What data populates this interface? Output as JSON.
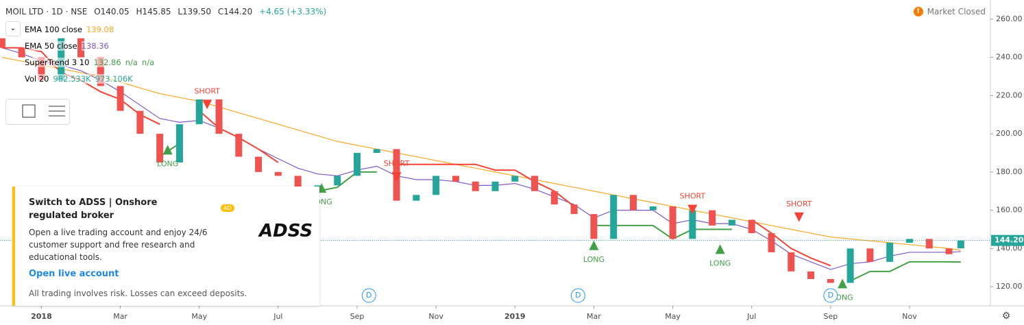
{
  "header": {
    "symbol": "MOIL LTD · 1D · NSE",
    "ohlc": [
      "O140.05",
      "H145.85",
      "L139.50",
      "C144.20"
    ],
    "change": "+4.65 (+3.33%)",
    "status": "Market Closed"
  },
  "legend": [
    {
      "name": "EMA 100 close",
      "values": [
        "139.08"
      ],
      "color": "#f9a825"
    },
    {
      "name": "EMA 50 close",
      "values": [
        "138.36"
      ],
      "color": "#7e57c2"
    },
    {
      "name": "SuperTrend 3 10",
      "values": [
        "132.86",
        "n/a",
        "n/a"
      ],
      "color": "#43a047"
    },
    {
      "name": "Vol 20",
      "values": [
        "982.533K",
        "973.106K"
      ],
      "color": "#26a69a"
    }
  ],
  "ad": {
    "title": "Switch to ADSS | Onshore regulated broker",
    "badge": "AD",
    "logo": "ADSS",
    "body": "Open a live trading account and enjoy 24/6 customer support and free research and educational tools.",
    "link": "Open live account",
    "disclaimer": "All trading involves risk. Losses can exceed deposits."
  },
  "chart_data": {
    "type": "candlestick",
    "x": [
      -1,
      -0.5,
      0,
      0.5,
      1,
      1.5,
      2,
      2.5,
      3,
      3.5,
      4,
      4.5,
      5,
      5.5,
      6,
      6.5,
      7,
      7.5,
      8,
      8.5,
      9,
      9.5,
      10,
      10.5,
      11,
      11.5,
      12,
      12.5,
      13,
      13.5,
      14,
      14.5,
      15,
      15.5,
      16,
      16.5,
      17,
      17.5,
      18,
      18.5,
      19,
      19.5,
      20,
      20.5,
      21,
      21.5,
      22,
      22.5,
      23,
      23.3
    ],
    "open": [
      250,
      245,
      240,
      228,
      250,
      240,
      225,
      212,
      200,
      185,
      205,
      218,
      200,
      188,
      180,
      178,
      172,
      173,
      178,
      190,
      192,
      165,
      168,
      178,
      175,
      170,
      175,
      178,
      170,
      163,
      158,
      145,
      168,
      160,
      162,
      145,
      160,
      152,
      155,
      148,
      138,
      128,
      124,
      122,
      140,
      133,
      143,
      145,
      140,
      140.05
    ],
    "close": [
      245,
      240,
      228,
      250,
      240,
      225,
      212,
      200,
      185,
      205,
      218,
      200,
      188,
      180,
      178,
      172,
      173,
      178,
      190,
      192,
      165,
      168,
      178,
      175,
      170,
      175,
      178,
      170,
      163,
      158,
      145,
      168,
      160,
      162,
      145,
      160,
      152,
      155,
      148,
      138,
      128,
      124,
      122,
      140,
      133,
      143,
      145,
      140,
      137,
      144.2
    ],
    "up_color": "#26a69a",
    "down_color": "#ef5350",
    "lines": [
      {
        "color": "#f9a825",
        "values": [
          240,
          238,
          236,
          234,
          232,
          230,
          227,
          224,
          221,
          219,
          217,
          214,
          211,
          208,
          205,
          202,
          199,
          196,
          194,
          192,
          190,
          188,
          186,
          184,
          182,
          180,
          178,
          176,
          174,
          172,
          170,
          168,
          166,
          164,
          162,
          160,
          158,
          156,
          154,
          152,
          150,
          148,
          146,
          145,
          144,
          143,
          142,
          141,
          140,
          139.08
        ]
      },
      {
        "color": "#7e57c2",
        "values": [
          245,
          242,
          238,
          236,
          233,
          228,
          222,
          215,
          208,
          206,
          207,
          203,
          198,
          192,
          187,
          182,
          179,
          178,
          181,
          183,
          178,
          176,
          176,
          175,
          173,
          173,
          174,
          171,
          167,
          163,
          156,
          160,
          160,
          160,
          153,
          155,
          153,
          153,
          150,
          144,
          137,
          133,
          129,
          132,
          133,
          136,
          138,
          138,
          138,
          138.36
        ]
      },
      {
        "color": "#f44336",
        "values": [
          245,
          245,
          243,
          232,
          228,
          222,
          218,
          210,
          205,
          null,
          212,
          203,
          198,
          192,
          185,
          null,
          null,
          null,
          null,
          null,
          184,
          184,
          184,
          184,
          184,
          181,
          181,
          175,
          170,
          162,
          null,
          null,
          null,
          null,
          null,
          null,
          null,
          null,
          155,
          148,
          140,
          135,
          131,
          null,
          null,
          null,
          null,
          null,
          null,
          null
        ]
      },
      {
        "color": "#43a047",
        "values": [
          null,
          null,
          null,
          null,
          null,
          null,
          null,
          null,
          188,
          195,
          null,
          null,
          null,
          null,
          null,
          168,
          170,
          172,
          180,
          180,
          null,
          null,
          null,
          null,
          null,
          null,
          null,
          null,
          null,
          null,
          152,
          152,
          152,
          152,
          145,
          150,
          150,
          150,
          null,
          null,
          null,
          null,
          null,
          123,
          128,
          128,
          133,
          133,
          133,
          132.86
        ]
      }
    ],
    "signals": [
      {
        "label": "SHORT",
        "x": 4.2,
        "price": 215,
        "color": "#f44336"
      },
      {
        "label": "LONG",
        "x": 3.2,
        "price": 192,
        "color": "#43a047"
      },
      {
        "label": "LONG",
        "x": 7.1,
        "price": 172,
        "color": "#43a047"
      },
      {
        "label": "SHORT",
        "x": 9.0,
        "price": 177,
        "color": "#f44336"
      },
      {
        "label": "LONG",
        "x": 14.0,
        "price": 142,
        "color": "#43a047"
      },
      {
        "label": "SHORT",
        "x": 16.5,
        "price": 160,
        "color": "#f44336"
      },
      {
        "label": "LONG",
        "x": 17.2,
        "price": 140,
        "color": "#43a047"
      },
      {
        "label": "SHORT",
        "x": 19.2,
        "price": 156,
        "color": "#f44336"
      },
      {
        "label": "LONG",
        "x": 20.3,
        "price": 122,
        "color": "#43a047"
      }
    ],
    "dividends": [
      {
        "label": "D",
        "x": 8.3
      },
      {
        "label": "D",
        "x": 13.6
      },
      {
        "label": "D",
        "x": 20.0
      }
    ],
    "xlim": [
      -1.05,
      24.05
    ],
    "xticks": [
      {
        "value": 0,
        "label": "2018"
      },
      {
        "value": 2,
        "label": "Mar"
      },
      {
        "value": 4,
        "label": "May"
      },
      {
        "value": 6,
        "label": "Jul"
      },
      {
        "value": 8,
        "label": "Sep"
      },
      {
        "value": 10,
        "label": "Nov"
      },
      {
        "value": 12,
        "label": "2019"
      },
      {
        "value": 14,
        "label": "Mar"
      },
      {
        "value": 16,
        "label": "May"
      },
      {
        "value": 18,
        "label": "Jul"
      },
      {
        "value": 20,
        "label": "Sep"
      },
      {
        "value": 22,
        "label": "Nov"
      }
    ],
    "ylim": [
      110,
      270
    ],
    "yticks": [
      {
        "value": 120,
        "label": "120.00"
      },
      {
        "value": 140,
        "label": "140.00"
      },
      {
        "value": 160,
        "label": "160.00"
      },
      {
        "value": 180,
        "label": "180.00"
      },
      {
        "value": 200,
        "label": "200.00"
      },
      {
        "value": 220,
        "label": "220.00"
      },
      {
        "value": 240,
        "label": "240.00"
      },
      {
        "value": 260,
        "label": "260.00"
      }
    ],
    "last_price": {
      "value": 144.2,
      "label": "144.20"
    }
  }
}
